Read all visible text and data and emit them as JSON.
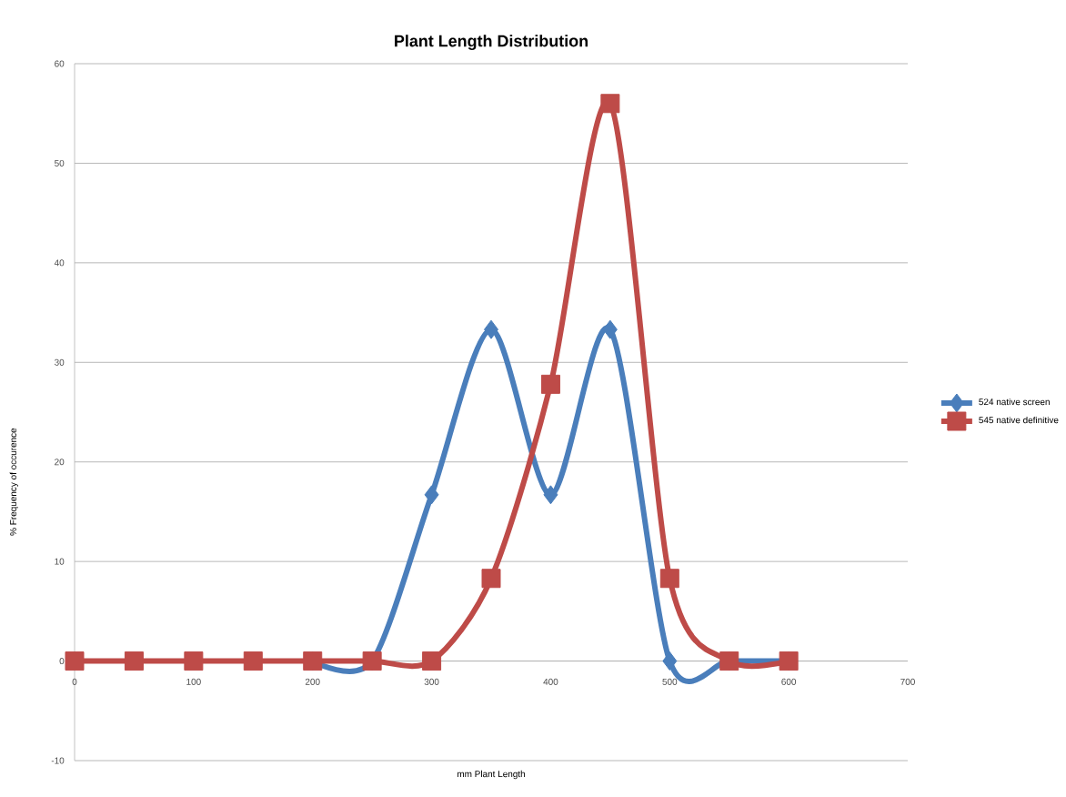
{
  "chart_data": {
    "type": "line",
    "title": "Plant Length Distribution",
    "xlabel": "mm Plant Length",
    "ylabel": "% Frequency of occurence",
    "x": [
      0,
      50,
      100,
      150,
      200,
      250,
      300,
      350,
      400,
      450,
      500,
      550,
      600
    ],
    "series": [
      {
        "name": "524 native screen",
        "color": "#4a7ebb",
        "marker": "diamond",
        "values": [
          null,
          null,
          null,
          null,
          0,
          0,
          16.7,
          33.3,
          16.7,
          33.3,
          0,
          0,
          0
        ]
      },
      {
        "name": "545 native definitive",
        "color": "#be4b48",
        "marker": "square",
        "values": [
          0,
          0,
          0,
          0,
          0,
          0,
          0,
          8.3,
          27.8,
          56,
          8.3,
          0,
          0
        ]
      }
    ],
    "xlim": [
      0,
      700
    ],
    "xticks": [
      0,
      100,
      200,
      300,
      400,
      500,
      600,
      700
    ],
    "ylim": [
      -10,
      60
    ],
    "yticks": [
      -10,
      0,
      10,
      20,
      30,
      40,
      50,
      60
    ],
    "grid": "y",
    "legend": "right",
    "line_style": "solid"
  }
}
